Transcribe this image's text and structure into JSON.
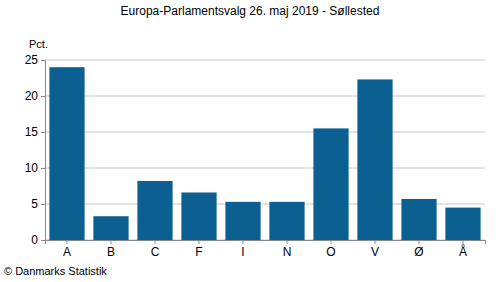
{
  "chart_data": {
    "type": "bar",
    "title": "Europa-Parlamentsvalg 26. maj 2019 - Søllested",
    "ylabel": "Pct.",
    "source": "© Danmarks Statistik",
    "categories": [
      "A",
      "B",
      "C",
      "F",
      "I",
      "N",
      "O",
      "V",
      "Ø",
      "Å"
    ],
    "values": [
      24.0,
      3.3,
      8.2,
      6.6,
      5.3,
      5.3,
      15.5,
      22.3,
      5.7,
      4.5
    ],
    "color": "#0b5f91",
    "ylim": [
      0,
      25
    ],
    "yticks": [
      0,
      5,
      10,
      15,
      20,
      25
    ],
    "grid": true
  }
}
